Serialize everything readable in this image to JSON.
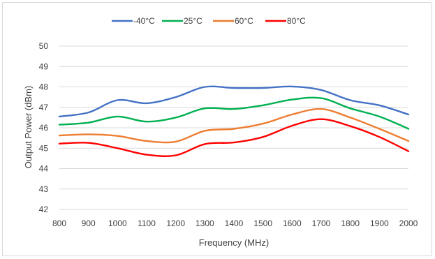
{
  "chart_data": {
    "type": "line",
    "xlabel": "Frequency (MHz)",
    "ylabel": "Output Power (dBm)",
    "xlim": [
      800,
      2000
    ],
    "ylim": [
      42,
      50
    ],
    "x_ticks": [
      800,
      900,
      1000,
      1100,
      1200,
      1300,
      1400,
      1500,
      1600,
      1700,
      1800,
      1900,
      2000
    ],
    "y_ticks": [
      42,
      43,
      44,
      45,
      46,
      47,
      48,
      49,
      50
    ],
    "grid": "horizontal",
    "legend_position": "top",
    "x": [
      800,
      900,
      1000,
      1100,
      1200,
      1300,
      1400,
      1500,
      1600,
      1700,
      1800,
      1900,
      2000
    ],
    "series": [
      {
        "name": "-40°C",
        "color": "#4472c4",
        "values": [
          46.55,
          46.75,
          47.35,
          47.2,
          47.5,
          48.0,
          47.95,
          47.95,
          48.02,
          47.85,
          47.35,
          47.1,
          46.65
        ]
      },
      {
        "name": "25°C",
        "color": "#00b050",
        "values": [
          46.15,
          46.25,
          46.55,
          46.3,
          46.5,
          46.95,
          46.92,
          47.1,
          47.38,
          47.45,
          46.95,
          46.55,
          45.95
        ]
      },
      {
        "name": "60°C",
        "color": "#ed7d31",
        "values": [
          45.62,
          45.68,
          45.6,
          45.35,
          45.32,
          45.85,
          45.95,
          46.2,
          46.65,
          46.92,
          46.5,
          45.95,
          45.35
        ]
      },
      {
        "name": "80°C",
        "color": "#ff0000",
        "values": [
          45.22,
          45.26,
          45.0,
          44.68,
          44.65,
          45.2,
          45.28,
          45.55,
          46.1,
          46.42,
          46.08,
          45.55,
          44.85
        ]
      }
    ]
  }
}
